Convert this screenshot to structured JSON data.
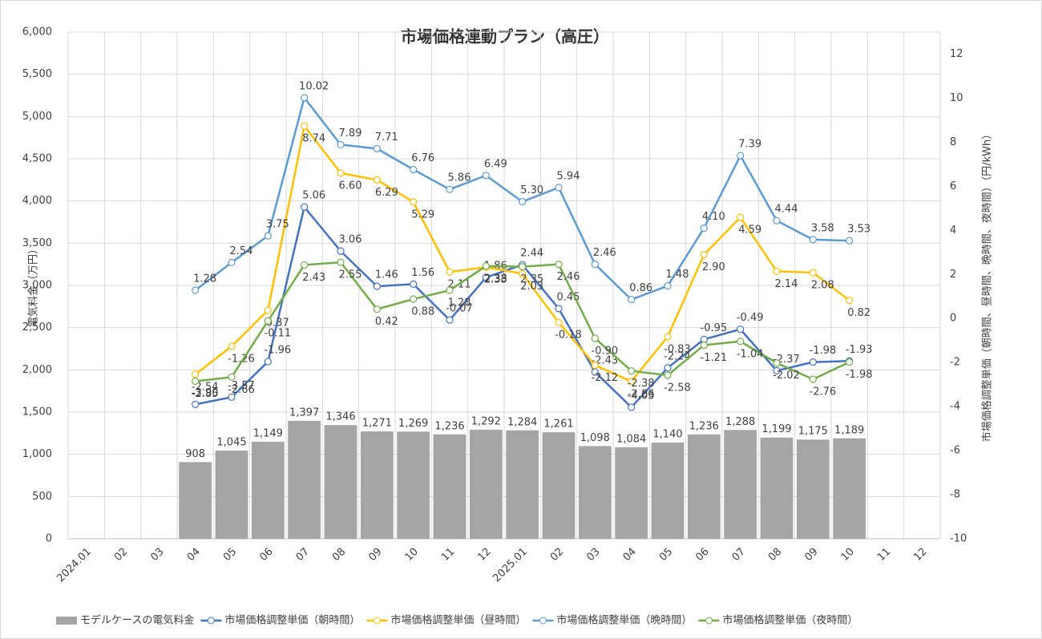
{
  "chart_data": {
    "type": "combo",
    "title": "市場価格連動プラン（高圧）",
    "y_label": "電気料金（万円）",
    "y2_label": "市場価格調整単価（朝時間、昼時間、晩時間、夜時間）（円/kWh）",
    "categories": [
      "2024.01",
      "02",
      "03",
      "04",
      "05",
      "06",
      "07",
      "08",
      "09",
      "10",
      "11",
      "12",
      "2025.01",
      "02",
      "03",
      "04",
      "05",
      "06",
      "07",
      "08",
      "09",
      "10",
      "11",
      "12"
    ],
    "ylim": [
      0,
      6000
    ],
    "yticks": [
      0,
      500,
      {
        "value": 1000,
        "label": "1,000"
      },
      {
        "value": 1500,
        "label": "1,500"
      },
      {
        "value": 2000,
        "label": "2,000"
      },
      {
        "value": 2500,
        "label": "2,500"
      },
      {
        "value": 3000,
        "label": "3,000"
      },
      {
        "value": 3500,
        "label": "3,500"
      },
      {
        "value": 4000,
        "label": "4,000"
      },
      {
        "value": 4500,
        "label": "4,500"
      },
      {
        "value": 5000,
        "label": "5,000"
      },
      {
        "value": 5500,
        "label": "5,500"
      },
      {
        "value": 6000,
        "label": "6,000"
      }
    ],
    "y2lim": [
      -10,
      13
    ],
    "y2ticks": [
      -10,
      -8,
      -6,
      -4,
      -2,
      0,
      2,
      4,
      6,
      8,
      10,
      12
    ],
    "grid": true,
    "legend": "bottom",
    "series": [
      {
        "name": "モデルケースの電気料金",
        "type": "bar",
        "color": "#a5a5a5",
        "values": [
          null,
          null,
          null,
          908,
          1045,
          1149,
          1397,
          1346,
          1271,
          1269,
          1236,
          1292,
          1284,
          1261,
          1098,
          1084,
          1140,
          1236,
          1288,
          1199,
          1175,
          1189,
          null,
          null
        ],
        "value_labels": [
          null,
          null,
          null,
          "908",
          "1,045",
          "1,149",
          "1,397",
          "1,346",
          "1,271",
          "1,269",
          "1,236",
          "1,292",
          "1,284",
          "1,261",
          "1,098",
          "1,084",
          "1,140",
          "1,236",
          "1,288",
          "1,199",
          "1,175",
          "1,189",
          null,
          null
        ]
      },
      {
        "name": "市場価格調整単価（朝時間）",
        "type": "line",
        "axis": "y2",
        "color": "#4472c4",
        "values": [
          null,
          null,
          null,
          -3.9,
          -3.57,
          -1.96,
          5.06,
          3.06,
          1.46,
          1.56,
          -0.07,
          1.86,
          2.44,
          0.45,
          -2.43,
          -4.03,
          -2.24,
          -0.95,
          -0.49,
          -2.37,
          -1.98,
          -1.93,
          null,
          null
        ],
        "value_labels": [
          null,
          null,
          null,
          "-3.90",
          "-3.57",
          "-1.96",
          "5.06",
          "3.06",
          "1.46",
          "1.56",
          "-0.07",
          "1.86",
          "2.44",
          "0.45",
          "-2.43",
          "-4.03",
          "-2.24",
          "-0.95",
          "-0.49",
          "-2.37",
          "-1.98",
          "-1.93",
          null,
          null
        ]
      },
      {
        "name": "市場価格調整単価（昼時間）",
        "type": "line",
        "axis": "y2",
        "color": "#ffc000",
        "values": [
          null,
          null,
          null,
          -2.54,
          -1.26,
          0.37,
          8.74,
          6.6,
          6.29,
          5.29,
          2.11,
          2.33,
          2.03,
          -0.18,
          -2.12,
          -2.86,
          -0.83,
          2.9,
          4.59,
          2.14,
          2.08,
          0.82,
          null,
          null
        ],
        "value_labels": [
          null,
          null,
          null,
          "-2.54",
          "-1.26",
          "0.37",
          "8.74",
          "6.60",
          "6.29",
          "5.29",
          "2.11",
          "2.33",
          "2.03",
          "-0.18",
          "-2.12",
          "-2.86",
          "-0.83",
          "2.90",
          "4.59",
          "2.14",
          "2.08",
          "0.82",
          null,
          null
        ]
      },
      {
        "name": "市場価格調整単価（晩時間）",
        "type": "line",
        "axis": "y2",
        "color": "#5b9bd5",
        "values": [
          null,
          null,
          null,
          1.28,
          2.54,
          3.75,
          10.02,
          7.89,
          7.71,
          6.76,
          5.86,
          6.49,
          5.3,
          5.94,
          2.46,
          0.86,
          1.48,
          4.1,
          7.39,
          4.44,
          3.58,
          3.53,
          null,
          null
        ],
        "value_labels": [
          null,
          null,
          null,
          "1.28",
          "2.54",
          "3.75",
          "10.02",
          "7.89",
          "7.71",
          "6.76",
          "5.86",
          "6.49",
          "5.30",
          "5.94",
          "2.46",
          "0.86",
          "1.48",
          "4.10",
          "7.39",
          "4.44",
          "3.58",
          "3.53",
          null,
          null
        ]
      },
      {
        "name": "市場価格調整単価（夜時間）",
        "type": "line",
        "axis": "y2",
        "color": "#70ad47",
        "values": [
          null,
          null,
          null,
          -2.85,
          -2.66,
          -0.11,
          2.43,
          2.55,
          0.42,
          0.88,
          1.28,
          2.38,
          2.35,
          2.46,
          -0.9,
          -2.38,
          -2.58,
          -1.21,
          -1.04,
          -2.02,
          -2.76,
          -1.98,
          null,
          null
        ],
        "value_labels": [
          null,
          null,
          null,
          "-2.85",
          "-2.66",
          "-0.11",
          "2.43",
          "2.55",
          "0.42",
          "0.88",
          "1.28",
          "2.38",
          "2.35",
          "2.46",
          "-0.90",
          "-2.38",
          "-2.58",
          "-1.21",
          "-1.04",
          "-2.02",
          "-2.76",
          "-1.98",
          null,
          null
        ]
      }
    ]
  }
}
